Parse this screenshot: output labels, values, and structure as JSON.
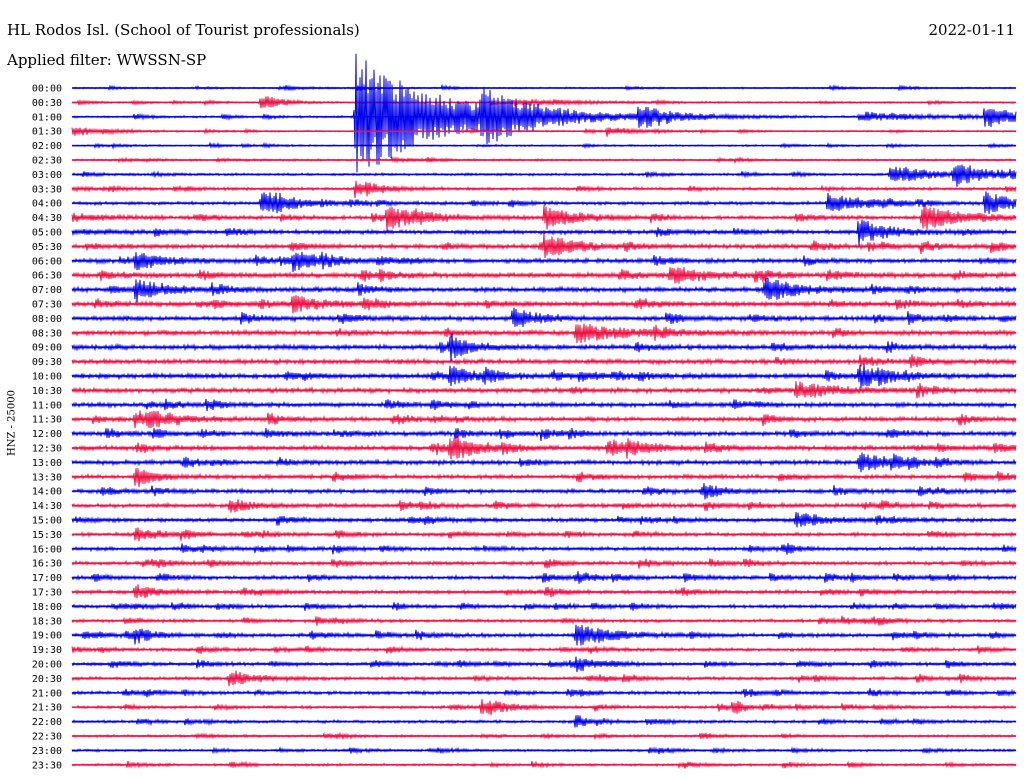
{
  "header": {
    "station": "HL Rodos Isl. (School of Tourist professionals)",
    "date": "2022-01-11",
    "filter": "Applied filter: WWSSN-SP",
    "channel": "HNZ - 25000"
  },
  "colors": {
    "blue": "#0000ee",
    "red": "#ee1144",
    "background": "#ffffff",
    "text": "#000000"
  },
  "chart_data": {
    "type": "line",
    "title": "HL Rodos Isl. (School of Tourist professionals)",
    "ylabel": "HNZ - 25000",
    "row_labels": [
      "00:00",
      "00:30",
      "01:00",
      "01:30",
      "02:00",
      "02:30",
      "03:00",
      "03:30",
      "04:00",
      "04:30",
      "05:00",
      "05:30",
      "06:00",
      "06:30",
      "07:00",
      "07:30",
      "08:00",
      "08:30",
      "09:00",
      "09:30",
      "10:00",
      "10:30",
      "11:00",
      "11:30",
      "12:00",
      "12:30",
      "13:00",
      "13:30",
      "14:00",
      "14:30",
      "15:00",
      "15:30",
      "16:00",
      "16:30",
      "17:00",
      "17:30",
      "18:00",
      "18:30",
      "19:00",
      "19:30",
      "20:00",
      "20:30",
      "21:00",
      "21:30",
      "22:00",
      "22:30",
      "23:00",
      "23:30"
    ],
    "row_colors": [
      "blue",
      "red"
    ],
    "noise_levels": [
      0.2,
      0.2,
      0.25,
      0.2,
      0.2,
      0.25,
      0.3,
      0.35,
      0.4,
      0.45,
      0.5,
      0.55,
      0.55,
      0.65,
      0.6,
      0.6,
      0.6,
      0.6,
      0.6,
      0.6,
      0.6,
      0.6,
      0.55,
      0.55,
      0.55,
      0.55,
      0.55,
      0.5,
      0.5,
      0.5,
      0.5,
      0.45,
      0.45,
      0.45,
      0.45,
      0.45,
      0.4,
      0.4,
      0.45,
      0.4,
      0.4,
      0.4,
      0.4,
      0.35,
      0.35,
      0.3,
      0.3,
      0.3
    ],
    "events": [
      {
        "time": "00:36",
        "amplitude": 2.5,
        "duration_min": 0.6
      },
      {
        "time": "00:44",
        "amplitude": 1.0,
        "duration_min": 2.0
      },
      {
        "time": "01:09",
        "amplitude": 20.0,
        "duration_min": 2.5
      },
      {
        "time": "01:13",
        "amplitude": 6.0,
        "duration_min": 1.5
      },
      {
        "time": "01:18",
        "amplitude": 3.0,
        "duration_min": 1.5
      },
      {
        "time": "01:25",
        "amplitude": 1.0,
        "duration_min": 2.5
      },
      {
        "time": "01:29",
        "amplitude": 3.5,
        "duration_min": 1.0
      },
      {
        "time": "01:47",
        "amplitude": 1.5,
        "duration_min": 0.8
      },
      {
        "time": "03:26",
        "amplitude": 3.0,
        "duration_min": 1.2
      },
      {
        "time": "03:28",
        "amplitude": 4.5,
        "duration_min": 0.8
      },
      {
        "time": "03:39",
        "amplitude": 3.0,
        "duration_min": 0.8
      },
      {
        "time": "04:06",
        "amplitude": 3.5,
        "duration_min": 1.0
      },
      {
        "time": "04:24",
        "amplitude": 3.0,
        "duration_min": 1.2
      },
      {
        "time": "04:29",
        "amplitude": 3.5,
        "duration_min": 1.0
      },
      {
        "time": "04:40",
        "amplitude": 3.5,
        "duration_min": 1.2
      },
      {
        "time": "04:45",
        "amplitude": 3.5,
        "duration_min": 1.0
      },
      {
        "time": "04:57",
        "amplitude": 3.0,
        "duration_min": 1.5
      },
      {
        "time": "05:25",
        "amplitude": 3.0,
        "duration_min": 1.0
      },
      {
        "time": "05:45",
        "amplitude": 3.5,
        "duration_min": 1.0
      },
      {
        "time": "06:02",
        "amplitude": 2.5,
        "duration_min": 1.0
      },
      {
        "time": "06:07",
        "amplitude": 3.0,
        "duration_min": 1.0
      },
      {
        "time": "06:49",
        "amplitude": 3.0,
        "duration_min": 1.0
      },
      {
        "time": "07:02",
        "amplitude": 3.5,
        "duration_min": 1.0
      },
      {
        "time": "07:22",
        "amplitude": 3.5,
        "duration_min": 1.0
      },
      {
        "time": "07:37",
        "amplitude": 2.5,
        "duration_min": 1.0
      },
      {
        "time": "08:14",
        "amplitude": 3.0,
        "duration_min": 0.8
      },
      {
        "time": "08:46",
        "amplitude": 3.0,
        "duration_min": 1.5
      },
      {
        "time": "09:12",
        "amplitude": 2.5,
        "duration_min": 0.8
      },
      {
        "time": "10:12",
        "amplitude": 2.5,
        "duration_min": 1.0
      },
      {
        "time": "10:25",
        "amplitude": 3.0,
        "duration_min": 0.8
      },
      {
        "time": "10:53",
        "amplitude": 2.5,
        "duration_min": 1.2
      },
      {
        "time": "11:32",
        "amplitude": 2.5,
        "duration_min": 1.2
      },
      {
        "time": "12:42",
        "amplitude": 3.0,
        "duration_min": 1.0
      },
      {
        "time": "12:47",
        "amplitude": 2.5,
        "duration_min": 1.0
      },
      {
        "time": "13:25",
        "amplitude": 3.0,
        "duration_min": 1.0
      },
      {
        "time": "13:32",
        "amplitude": 2.5,
        "duration_min": 0.6
      },
      {
        "time": "14:20",
        "amplitude": 2.5,
        "duration_min": 0.6
      },
      {
        "time": "14:35",
        "amplitude": 2.5,
        "duration_min": 0.6
      },
      {
        "time": "15:23",
        "amplitude": 2.5,
        "duration_min": 0.8
      },
      {
        "time": "15:32",
        "amplitude": 2.0,
        "duration_min": 0.8
      },
      {
        "time": "17:16",
        "amplitude": 2.0,
        "duration_min": 0.6
      },
      {
        "time": "17:32",
        "amplitude": 2.5,
        "duration_min": 0.6
      },
      {
        "time": "19:02",
        "amplitude": 2.0,
        "duration_min": 0.6
      },
      {
        "time": "19:16",
        "amplitude": 3.5,
        "duration_min": 1.2
      },
      {
        "time": "20:16",
        "amplitude": 2.0,
        "duration_min": 0.6
      },
      {
        "time": "20:35",
        "amplitude": 2.5,
        "duration_min": 0.8
      },
      {
        "time": "21:43",
        "amplitude": 2.5,
        "duration_min": 0.8
      },
      {
        "time": "22:16",
        "amplitude": 2.5,
        "duration_min": 0.3
      },
      {
        "time": "21:51",
        "amplitude": 2.5,
        "duration_min": 0.3
      }
    ]
  }
}
